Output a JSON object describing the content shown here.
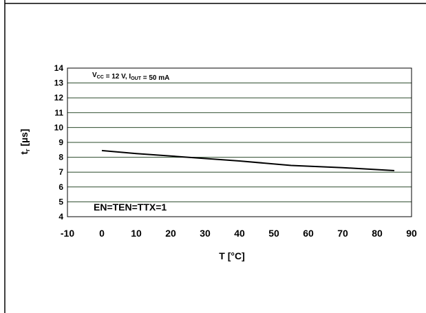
{
  "chart_data": {
    "type": "line",
    "title": "",
    "xlabel": "T [°C]",
    "ylabel": {
      "main": "t",
      "sub": "r",
      "unit": " [µs]"
    },
    "xlim": [
      -10,
      90
    ],
    "ylim": [
      4,
      14
    ],
    "x_ticks": [
      -10,
      0,
      10,
      20,
      30,
      40,
      50,
      60,
      70,
      80,
      90
    ],
    "y_ticks": [
      4,
      5,
      6,
      7,
      8,
      9,
      10,
      11,
      12,
      13,
      14
    ],
    "grid": {
      "horizontal": true,
      "vertical": false
    },
    "series": [
      {
        "x": [
          0,
          10,
          25,
          40,
          55,
          70,
          85
        ],
        "y": [
          8.45,
          8.25,
          8.0,
          7.75,
          7.45,
          7.3,
          7.1
        ]
      }
    ],
    "annotations": [
      {
        "id": "conditions",
        "parts": [
          {
            "text": "V",
            "sub": "CC"
          },
          {
            "text": " = 12 V, I",
            "sub": "OUT"
          },
          {
            "text": " = 50 mA"
          }
        ]
      },
      {
        "id": "enable",
        "text": "EN=TEN=TTX=1"
      }
    ],
    "colors": {
      "line": "#000000",
      "grid": "#2a4a2a",
      "frame": "#000000"
    }
  }
}
